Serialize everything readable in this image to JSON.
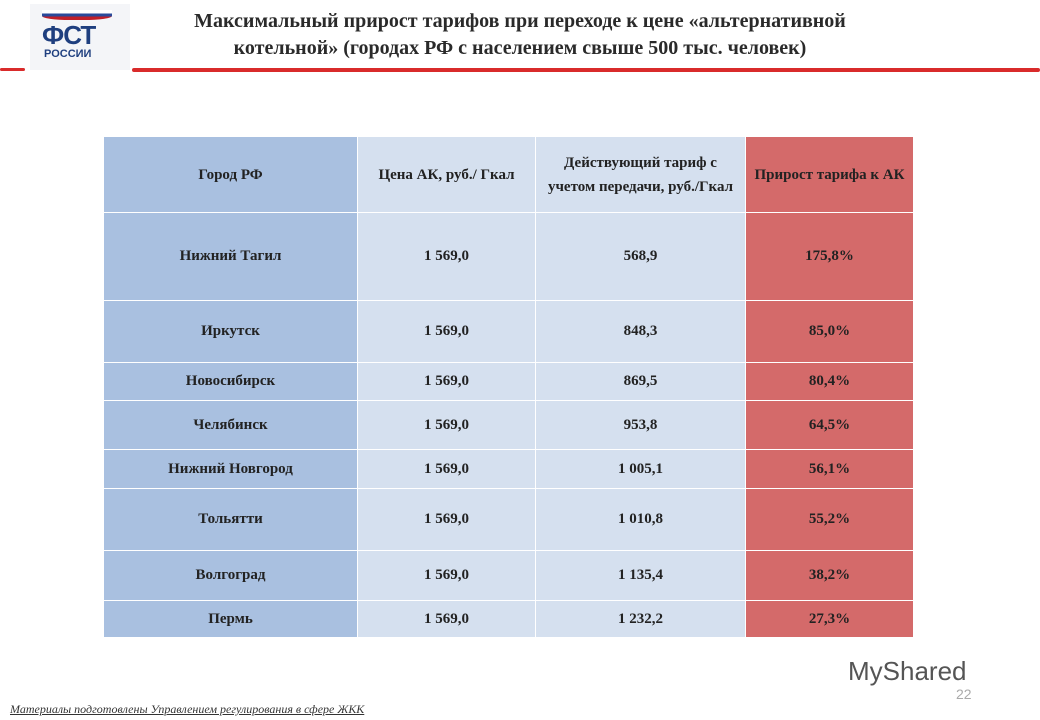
{
  "logo": {
    "text1": "ФСТ",
    "text2": "РОССИИ"
  },
  "title": "Максимальный прирост тарифов при переходе к цене «альтернативной котельной» (городах РФ с населением свыше 500 тыс. человек)",
  "table": {
    "headers": [
      "Город РФ",
      "Цена АК, руб./ Гкал",
      "Действующий тариф с учетом передачи, руб./Гкал",
      "Прирост тарифа к АК"
    ],
    "rows": [
      [
        "Нижний Тагил",
        "1 569,0",
        "568,9",
        "175,8%"
      ],
      [
        "Иркутск",
        "1 569,0",
        "848,3",
        "85,0%"
      ],
      [
        "Новосибирск",
        "1 569,0",
        "869,5",
        "80,4%"
      ],
      [
        "Челябинск",
        "1 569,0",
        "953,8",
        "64,5%"
      ],
      [
        "Нижний Новгород",
        "1 569,0",
        "1 005,1",
        "56,1%"
      ],
      [
        "Тольятти",
        "1 569,0",
        "1 010,8",
        "55,2%"
      ],
      [
        "Волгоград",
        "1 569,0",
        "1 135,4",
        "38,2%"
      ],
      [
        "Пермь",
        "1 569,0",
        "1 232,2",
        "27,3%"
      ]
    ]
  },
  "footer": "Материалы подготовлены Управлением регулирования в сфере ЖКК",
  "page_number": "22",
  "watermark": "MyShared"
}
